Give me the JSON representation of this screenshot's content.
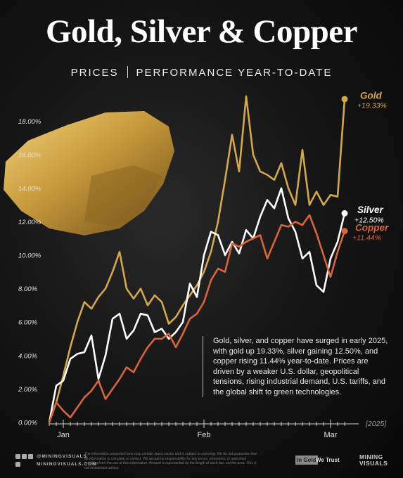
{
  "chart_data": {
    "type": "line",
    "title": "Gold, Silver & Copper",
    "subtitle_left": "PRICES",
    "subtitle_right": "PERFORMANCE YEAR-TO-DATE",
    "annotation": "Gold, silver, and copper have surged in early 2025, with gold up 19.33%, silver gaining 12.50%, and copper rising 11.44% year-to-date. Prices are driven by a weaker U.S. dollar, geopolitical tensions, rising industrial demand, U.S. tariffs, and the global shift to green technologies.",
    "x_axis_label": "[2025]",
    "categories": [
      null,
      null,
      "Jan",
      null,
      null,
      null,
      null,
      null,
      null,
      null,
      null,
      null,
      null,
      null,
      null,
      null,
      null,
      null,
      null,
      null,
      null,
      null,
      "Feb",
      null,
      null,
      null,
      null,
      null,
      null,
      null,
      null,
      null,
      null,
      null,
      null,
      null,
      null,
      null,
      null,
      null,
      "Mar",
      null,
      null
    ],
    "ylim": [
      0,
      20
    ],
    "yticks": [
      {
        "value": 0,
        "label": "0.00%"
      },
      {
        "value": 2,
        "label": "2.00%"
      },
      {
        "value": 4,
        "label": "4.00%"
      },
      {
        "value": 6,
        "label": "6.00%"
      },
      {
        "value": 8,
        "label": "8.00%"
      },
      {
        "value": 10,
        "label": "10.00%"
      },
      {
        "value": 12,
        "label": "12.00%"
      },
      {
        "value": 14,
        "label": "14.00%"
      },
      {
        "value": 16,
        "label": "16.00%"
      },
      {
        "value": 18,
        "label": "18.00%"
      }
    ],
    "grid": false,
    "series": [
      {
        "name": "Gold",
        "color": "#d4a848",
        "values": [
          0,
          1.2,
          2.8,
          4.5,
          6.0,
          7.2,
          6.8,
          7.5,
          8.0,
          9.0,
          10.2,
          8.0,
          7.4,
          8.0,
          7.0,
          7.6,
          7.2,
          5.9,
          6.3,
          7.0,
          7.6,
          8.2,
          9.0,
          10.2,
          12.0,
          14.5,
          17.2,
          15.0,
          19.5,
          16.0,
          15.0,
          14.8,
          14.5,
          15.5,
          14.0,
          13.0,
          16.3,
          13.0,
          13.8,
          13.0,
          13.6,
          13.5,
          19.33
        ],
        "value_labels": [
          null,
          null,
          null,
          null,
          null,
          null,
          null,
          null,
          null,
          null,
          null,
          null,
          null,
          null,
          null,
          null,
          null,
          null,
          null,
          null,
          null,
          null,
          null,
          null,
          null,
          null,
          null,
          null,
          null,
          null,
          null,
          null,
          null,
          null,
          null,
          null,
          null,
          null,
          null,
          null,
          null,
          null,
          "+19.33%"
        ]
      },
      {
        "name": "Silver",
        "color": "#ffffff",
        "values": [
          0,
          2.2,
          2.5,
          3.8,
          4.1,
          4.2,
          5.2,
          2.6,
          4.0,
          6.2,
          6.5,
          5.0,
          5.5,
          6.5,
          6.4,
          5.4,
          5.6,
          5.0,
          5.4,
          6.0,
          8.3,
          7.5,
          10.0,
          11.4,
          11.2,
          10.0,
          10.8,
          10.1,
          11.5,
          11.0,
          12.3,
          13.3,
          12.8,
          14.0,
          12.2,
          11.4,
          9.8,
          10.2,
          8.2,
          7.8,
          9.8,
          10.8,
          12.5
        ],
        "value_labels": [
          null,
          null,
          null,
          null,
          null,
          null,
          null,
          null,
          null,
          null,
          null,
          null,
          null,
          null,
          null,
          null,
          null,
          null,
          null,
          null,
          null,
          null,
          null,
          null,
          null,
          null,
          null,
          null,
          null,
          null,
          null,
          null,
          null,
          null,
          null,
          null,
          null,
          null,
          null,
          null,
          null,
          null,
          "+12.50%"
        ]
      },
      {
        "name": "Copper",
        "color": "#d9643a",
        "values": [
          0,
          1.2,
          0.7,
          0.3,
          0.9,
          1.5,
          1.9,
          2.5,
          1.4,
          2.0,
          2.6,
          3.3,
          3.0,
          3.8,
          4.5,
          5.0,
          5.0,
          5.3,
          4.5,
          5.3,
          6.2,
          6.5,
          7.2,
          8.5,
          9.2,
          9.0,
          10.7,
          10.5,
          10.8,
          11.0,
          11.2,
          9.8,
          10.8,
          11.8,
          11.7,
          12.0,
          11.8,
          12.4,
          11.3,
          10.0,
          8.7,
          10.2,
          11.44
        ],
        "value_labels": [
          null,
          null,
          null,
          null,
          null,
          null,
          null,
          null,
          null,
          null,
          null,
          null,
          null,
          null,
          null,
          null,
          null,
          null,
          null,
          null,
          null,
          null,
          null,
          null,
          null,
          null,
          null,
          null,
          null,
          null,
          null,
          null,
          null,
          null,
          null,
          null,
          null,
          null,
          null,
          null,
          null,
          null,
          "+11.44%"
        ]
      }
    ]
  },
  "footer": {
    "handle": "@MININGVISUALS",
    "site": "MININGVISUALS.COM",
    "disclaimer": "The information presented here may contain inaccuracies and is subject to rounding. We do not guarantee that all information is complete or correct. We accept no responsibility for any errors, omissions, or outcomes resulting from the use of this information. Amount is represented by the length of each bar, not the area. This is not investment advice.",
    "partner_left": "In Gold",
    "partner_right": "We Trust",
    "brand": "MINING VISUALS"
  }
}
